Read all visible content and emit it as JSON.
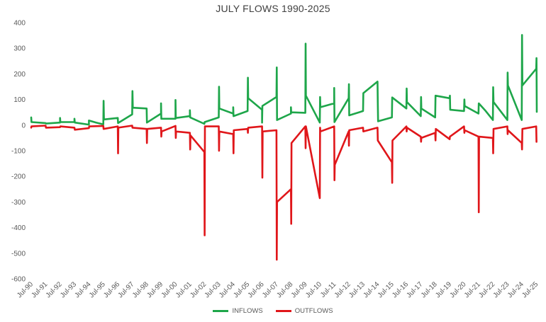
{
  "chart_data": {
    "type": "line",
    "title": "JULY FLOWS 1990-2025",
    "xlabel": "",
    "ylabel": "",
    "ylim": [
      -600,
      400
    ],
    "yticks": [
      400,
      300,
      200,
      100,
      0,
      -100,
      -200,
      -300,
      -400,
      -500,
      -600
    ],
    "x_tick_labels": [
      "Jul-90",
      "Jul-91",
      "Jul-92",
      "Jul-93",
      "Jul-94",
      "Jul-95",
      "Jul-96",
      "Jul-97",
      "Jul-98",
      "Jul-99",
      "Jul-00",
      "Jul-01",
      "Jul-02",
      "Jul-03",
      "Jul-04",
      "Jul-05",
      "Jul-06",
      "Jul-07",
      "Jul-08",
      "Jul-09",
      "Jul-10",
      "Jul-11",
      "Jul-12",
      "Jul-13",
      "Jul-14",
      "Jul-15",
      "Jul-16",
      "Jul-17",
      "Jul-18",
      "Jul-19",
      "Jul-20",
      "Jul-21",
      "Jul-22",
      "Jul-23",
      "Jul-24",
      "Jul-25"
    ],
    "grid": false,
    "legend_position": "bottom",
    "series": [
      {
        "name": "INFLOWS",
        "color": "#1ea64a",
        "points": [
          [
            1990.0,
            30
          ],
          [
            1990.02,
            12
          ],
          [
            1991.0,
            8
          ],
          [
            1991.02,
            6
          ],
          [
            1992.0,
            10
          ],
          [
            1992.0,
            28
          ],
          [
            1992.02,
            12
          ],
          [
            1993.0,
            12
          ],
          [
            1993.0,
            25
          ],
          [
            1993.02,
            10
          ],
          [
            1994.0,
            2
          ],
          [
            1994.0,
            18
          ],
          [
            1994.5,
            10
          ],
          [
            1995.0,
            3
          ],
          [
            1995.02,
            95
          ],
          [
            1995.04,
            22
          ],
          [
            1996.0,
            28
          ],
          [
            1996.02,
            8
          ],
          [
            1997.0,
            42
          ],
          [
            1997.02,
            133
          ],
          [
            1997.04,
            68
          ],
          [
            1998.0,
            65
          ],
          [
            1998.02,
            10
          ],
          [
            1999.0,
            45
          ],
          [
            1999.0,
            85
          ],
          [
            1999.02,
            25
          ],
          [
            2000.0,
            25
          ],
          [
            2000.0,
            98
          ],
          [
            2000.02,
            28
          ],
          [
            2001.0,
            35
          ],
          [
            2001.0,
            58
          ],
          [
            2001.02,
            30
          ],
          [
            2002.0,
            5
          ],
          [
            2002.02,
            12
          ],
          [
            2003.0,
            30
          ],
          [
            2003.02,
            150
          ],
          [
            2003.04,
            65
          ],
          [
            2004.0,
            45
          ],
          [
            2004.0,
            70
          ],
          [
            2004.02,
            35
          ],
          [
            2005.0,
            55
          ],
          [
            2005.02,
            185
          ],
          [
            2005.04,
            105
          ],
          [
            2006.0,
            60
          ],
          [
            2006.0,
            10
          ],
          [
            2006.02,
            75
          ],
          [
            2007.0,
            110
          ],
          [
            2007.02,
            225
          ],
          [
            2007.04,
            20
          ],
          [
            2008.0,
            45
          ],
          [
            2008.0,
            70
          ],
          [
            2008.02,
            50
          ],
          [
            2009.0,
            48
          ],
          [
            2009.02,
            318
          ],
          [
            2009.04,
            115
          ],
          [
            2010.0,
            10
          ],
          [
            2010.02,
            110
          ],
          [
            2010.04,
            70
          ],
          [
            2011.0,
            85
          ],
          [
            2011.0,
            145
          ],
          [
            2011.02,
            12
          ],
          [
            2012.0,
            105
          ],
          [
            2012.02,
            160
          ],
          [
            2012.04,
            38
          ],
          [
            2013.0,
            55
          ],
          [
            2013.02,
            125
          ],
          [
            2014.0,
            170
          ],
          [
            2014.02,
            85
          ],
          [
            2014.04,
            15
          ],
          [
            2015.0,
            30
          ],
          [
            2015.02,
            108
          ],
          [
            2016.0,
            65
          ],
          [
            2016.02,
            143
          ],
          [
            2016.04,
            90
          ],
          [
            2017.0,
            35
          ],
          [
            2017.02,
            110
          ],
          [
            2017.04,
            65
          ],
          [
            2018.0,
            30
          ],
          [
            2018.02,
            115
          ],
          [
            2019.0,
            105
          ],
          [
            2019.02,
            115
          ],
          [
            2019.04,
            60
          ],
          [
            2020.0,
            55
          ],
          [
            2020.02,
            100
          ],
          [
            2020.04,
            75
          ],
          [
            2021.0,
            45
          ],
          [
            2021.02,
            85
          ],
          [
            2021.5,
            55
          ],
          [
            2022.0,
            20
          ],
          [
            2022.02,
            148
          ],
          [
            2022.04,
            90
          ],
          [
            2023.0,
            20
          ],
          [
            2023.02,
            205
          ],
          [
            2023.04,
            155
          ],
          [
            2024.0,
            20
          ],
          [
            2024.02,
            352
          ],
          [
            2024.04,
            155
          ],
          [
            2025.0,
            220
          ],
          [
            2025.02,
            262
          ],
          [
            2025.04,
            52
          ]
        ]
      },
      {
        "name": "OUTFLOWS",
        "color": "#e0161a",
        "points": [
          [
            1990.0,
            -10
          ],
          [
            1990.02,
            -5
          ],
          [
            1991.0,
            -2
          ],
          [
            1991.02,
            -10
          ],
          [
            1992.0,
            -8
          ],
          [
            1992.02,
            -5
          ],
          [
            1993.0,
            -10
          ],
          [
            1993.02,
            -18
          ],
          [
            1994.0,
            -12
          ],
          [
            1994.02,
            -5
          ],
          [
            1995.0,
            -3
          ],
          [
            1995.02,
            -15
          ],
          [
            1996.0,
            -5
          ],
          [
            1996.02,
            -110
          ],
          [
            1996.04,
            -10
          ],
          [
            1997.0,
            -2
          ],
          [
            1997.02,
            -10
          ],
          [
            1998.0,
            -15
          ],
          [
            1998.02,
            -70
          ],
          [
            1998.04,
            -15
          ],
          [
            1999.0,
            -10
          ],
          [
            1999.02,
            -45
          ],
          [
            1999.04,
            -25
          ],
          [
            2000.0,
            -3
          ],
          [
            2000.02,
            -50
          ],
          [
            2000.04,
            -25
          ],
          [
            2001.0,
            -30
          ],
          [
            2001.02,
            -95
          ],
          [
            2001.04,
            -40
          ],
          [
            2002.0,
            -105
          ],
          [
            2002.02,
            -430
          ],
          [
            2002.04,
            -5
          ],
          [
            2003.0,
            -5
          ],
          [
            2003.02,
            -100
          ],
          [
            2003.04,
            -25
          ],
          [
            2004.0,
            -35
          ],
          [
            2004.02,
            -110
          ],
          [
            2004.04,
            -20
          ],
          [
            2005.0,
            -15
          ],
          [
            2005.02,
            -30
          ],
          [
            2005.04,
            -10
          ],
          [
            2006.0,
            -5
          ],
          [
            2006.02,
            -205
          ],
          [
            2006.04,
            -25
          ],
          [
            2007.0,
            -20
          ],
          [
            2007.02,
            -525
          ],
          [
            2007.04,
            -300
          ],
          [
            2008.0,
            -250
          ],
          [
            2008.02,
            -385
          ],
          [
            2008.04,
            -70
          ],
          [
            2009.0,
            -5
          ],
          [
            2009.02,
            -90
          ],
          [
            2009.04,
            -5
          ],
          [
            2010.0,
            -285
          ],
          [
            2010.02,
            -10
          ],
          [
            2010.04,
            -25
          ],
          [
            2011.0,
            -5
          ],
          [
            2011.02,
            -215
          ],
          [
            2011.04,
            -155
          ],
          [
            2012.0,
            -25
          ],
          [
            2012.02,
            -80
          ],
          [
            2012.04,
            -20
          ],
          [
            2013.0,
            -10
          ],
          [
            2013.02,
            -25
          ],
          [
            2014.0,
            -10
          ],
          [
            2014.02,
            -60
          ],
          [
            2015.0,
            -145
          ],
          [
            2015.02,
            -225
          ],
          [
            2015.04,
            -60
          ],
          [
            2016.0,
            -5
          ],
          [
            2016.02,
            -25
          ],
          [
            2016.04,
            -10
          ],
          [
            2017.0,
            -45
          ],
          [
            2017.02,
            -65
          ],
          [
            2017.04,
            -50
          ],
          [
            2018.0,
            -30
          ],
          [
            2018.02,
            -60
          ],
          [
            2018.04,
            -15
          ],
          [
            2019.0,
            -55
          ],
          [
            2019.02,
            -45
          ],
          [
            2020.0,
            -5
          ],
          [
            2020.02,
            -30
          ],
          [
            2020.04,
            -20
          ],
          [
            2021.0,
            -45
          ],
          [
            2021.02,
            -340
          ],
          [
            2021.04,
            -45
          ],
          [
            2022.0,
            -50
          ],
          [
            2022.02,
            -110
          ],
          [
            2022.04,
            -15
          ],
          [
            2023.0,
            -5
          ],
          [
            2023.02,
            -35
          ],
          [
            2023.04,
            -20
          ],
          [
            2024.0,
            -70
          ],
          [
            2024.02,
            -95
          ],
          [
            2024.04,
            -15
          ],
          [
            2025.0,
            -5
          ],
          [
            2025.02,
            -65
          ]
        ]
      }
    ]
  }
}
